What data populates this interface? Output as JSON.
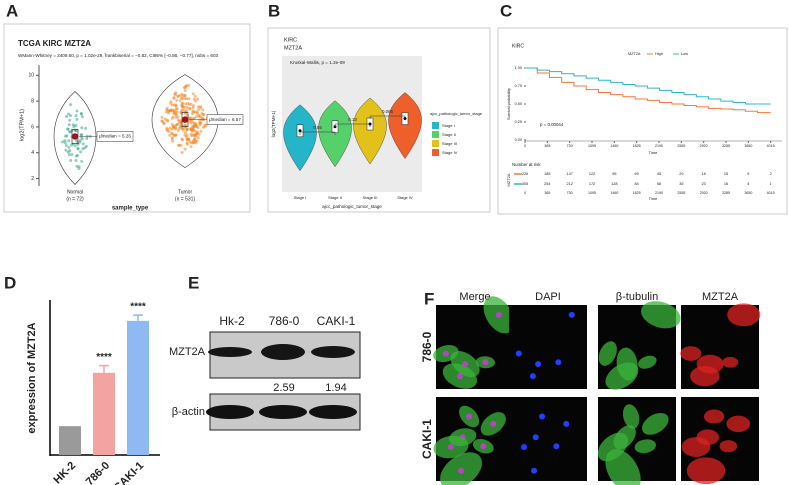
{
  "panel_a": {
    "letter": "A",
    "title": "TCGA KIRC MZT2A",
    "stats": "WMann-Whitney = 3409.50, p = 1.02e-29, r̂rankbiserial = −0.82, CI95% [−0.86, −0.77], nobs = 603",
    "y_label": "log2(TPM+1)",
    "x_label": "sample_type",
    "ylim": [
      1.5,
      10.8
    ],
    "yticks": [
      2,
      4,
      6,
      8,
      10
    ],
    "groups": [
      {
        "name": "Normal",
        "n": "(n = 72)",
        "median": 5.26,
        "median_label": "μ̂median = 5.26",
        "color": "#3aa88a"
      },
      {
        "name": "Tumor",
        "n": "(n = 531)",
        "median": 6.57,
        "median_label": "μ̂median = 6.57",
        "color": "#f08a2c"
      }
    ]
  },
  "panel_b": {
    "letter": "B",
    "cohort": "KIRC",
    "gene": "MZT2A",
    "test": "Kruskal-Wallis, p = 1.2e-09",
    "y_label": "log2(TPM+1)",
    "x_label": "ajcc_pathologic_tumor_stage",
    "legend_title": "ajcc_pathologic_tumor_stage",
    "ylim": [
      2,
      12
    ],
    "categories": [
      "Stage I",
      "Stage II",
      "Stage III",
      "Stage IV"
    ],
    "colors": [
      "#25b5c8",
      "#56d06a",
      "#e2c11a",
      "#ef5f2a"
    ],
    "medians": [
      6.5,
      6.8,
      7.0,
      7.4
    ],
    "pairwise_p": [
      0.55,
      0.13,
      0.065
    ]
  },
  "panel_c": {
    "letter": "C",
    "cohort": "KIRC",
    "legend_title": "MZT2A",
    "p_value": "p = 0.00044",
    "y_label": "Survival probability",
    "x_label": "Time",
    "xlim": [
      0,
      4200
    ],
    "ylim": [
      0,
      1
    ],
    "yticks": [
      {
        "value": 0,
        "label": "0.00"
      },
      {
        "value": 0.25,
        "label": "0.25"
      },
      {
        "value": 0.5,
        "label": "0.50"
      },
      {
        "value": 0.75,
        "label": "0.75"
      },
      {
        "value": 1,
        "label": "1.00"
      }
    ],
    "xticks": [
      0,
      365,
      730,
      1095,
      1460,
      1825,
      2190,
      2555,
      2920,
      3285,
      3650,
      4015
    ],
    "risk_title": "Number at risk",
    "strata_label": "MZT2A",
    "series": [
      {
        "name": "High",
        "color": "#f07a3a",
        "x": [
          0,
          200,
          400,
          600,
          800,
          1000,
          1200,
          1400,
          1600,
          1800,
          2000,
          2200,
          2400,
          2600,
          2800,
          3000,
          3200,
          3400,
          3600,
          3800,
          4015
        ],
        "values": [
          1,
          0.93,
          0.87,
          0.8,
          0.75,
          0.7,
          0.66,
          0.63,
          0.6,
          0.57,
          0.55,
          0.52,
          0.5,
          0.48,
          0.46,
          0.44,
          0.43,
          0.42,
          0.4,
          0.38,
          0.38
        ],
        "at_risk": [
          226,
          185,
          147,
          122,
          95,
          69,
          45,
          29,
          18,
          15,
          9,
          2
        ]
      },
      {
        "name": "Low",
        "color": "#2cb8c4",
        "x": [
          0,
          200,
          400,
          600,
          800,
          1000,
          1200,
          1400,
          1600,
          1800,
          2000,
          2200,
          2400,
          2600,
          2800,
          3000,
          3200,
          3400,
          3600,
          3800,
          4015
        ],
        "values": [
          1,
          0.97,
          0.95,
          0.92,
          0.89,
          0.86,
          0.83,
          0.8,
          0.77,
          0.75,
          0.72,
          0.69,
          0.66,
          0.63,
          0.6,
          0.57,
          0.54,
          0.52,
          0.5,
          0.5,
          0.5
        ],
        "at_risk": [
          305,
          254,
          212,
          172,
          128,
          84,
          58,
          35,
          23,
          16,
          4,
          1
        ]
      }
    ]
  },
  "panel_d": {
    "letter": "D",
    "type": "bar",
    "y_label": "expression of MZT2A",
    "ylim": [
      0,
      5.2
    ],
    "categories": [
      "HK-2",
      "786-0",
      "CAKI-1"
    ],
    "values": [
      1,
      2.85,
      4.65
    ],
    "errors": [
      0,
      0.25,
      0.2
    ],
    "colors": [
      "#9a9a9a",
      "#f4a3a3",
      "#8fb9f2"
    ],
    "significance": [
      null,
      "****",
      "****"
    ]
  },
  "panel_e": {
    "letter": "E",
    "lanes": [
      "Hk-2",
      "786-0",
      "CAKI-1"
    ],
    "targets": [
      "MZT2A",
      "β-actin"
    ],
    "ratios": [
      null,
      2.59,
      1.94
    ]
  },
  "panel_f": {
    "letter": "F",
    "channels": [
      {
        "name": "Merge",
        "color": "#e8b820"
      },
      {
        "name": "DAPI",
        "color": "#3b5bd6"
      },
      {
        "name": "β-tubulin",
        "color": "#4cb84c"
      },
      {
        "name": "MZT2A",
        "color": "#e03030"
      }
    ],
    "rows": [
      "786-0",
      "CAKI-1"
    ]
  }
}
